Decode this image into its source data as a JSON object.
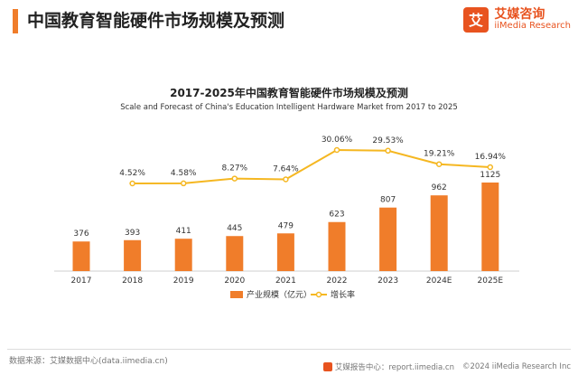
{
  "header": {
    "title": "中国教育智能硬件市场规模及预测"
  },
  "brand": {
    "name_cn": "艾媒咨询",
    "name_en": "iiMedia Research",
    "logo_char": "艾"
  },
  "colors": {
    "accent": "#f07d2a",
    "bar": "#f07d2a",
    "line": "#f5b721"
  },
  "chart_data": {
    "type": "bar",
    "title": "2017-2025年中国教育智能硬件市场规模及预测",
    "subtitle": "Scale and Forecast of China's Education Intelligent Hardware Market from 2017 to 2025",
    "categories": [
      "2017",
      "2018",
      "2019",
      "2020",
      "2021",
      "2022",
      "2023",
      "2024E",
      "2025E"
    ],
    "series": [
      {
        "name": "产业规模（亿元）",
        "type": "bar",
        "values": [
          376,
          393,
          411,
          445,
          479,
          623,
          807,
          962,
          1125
        ]
      },
      {
        "name": "增长率",
        "type": "line",
        "axis": "secondary",
        "values": [
          null,
          4.52,
          4.58,
          8.27,
          7.64,
          30.06,
          29.53,
          19.21,
          16.94
        ]
      }
    ],
    "bar_labels": [
      "376",
      "393",
      "411",
      "445",
      "479",
      "623",
      "807",
      "962",
      "1125"
    ],
    "line_labels": [
      "",
      "4.52%",
      "4.58%",
      "8.27%",
      "7.64%",
      "30.06%",
      "29.53%",
      "19.21%",
      "16.94%"
    ],
    "legend": {
      "position": "bottom"
    },
    "grid": false
  },
  "footer": {
    "source": "数据来源：艾媒数据中心(data.iimedia.cn)",
    "report": "艾媒报告中心：report.iimedia.cn",
    "copyright": "©2024  iiMedia Research  Inc"
  }
}
